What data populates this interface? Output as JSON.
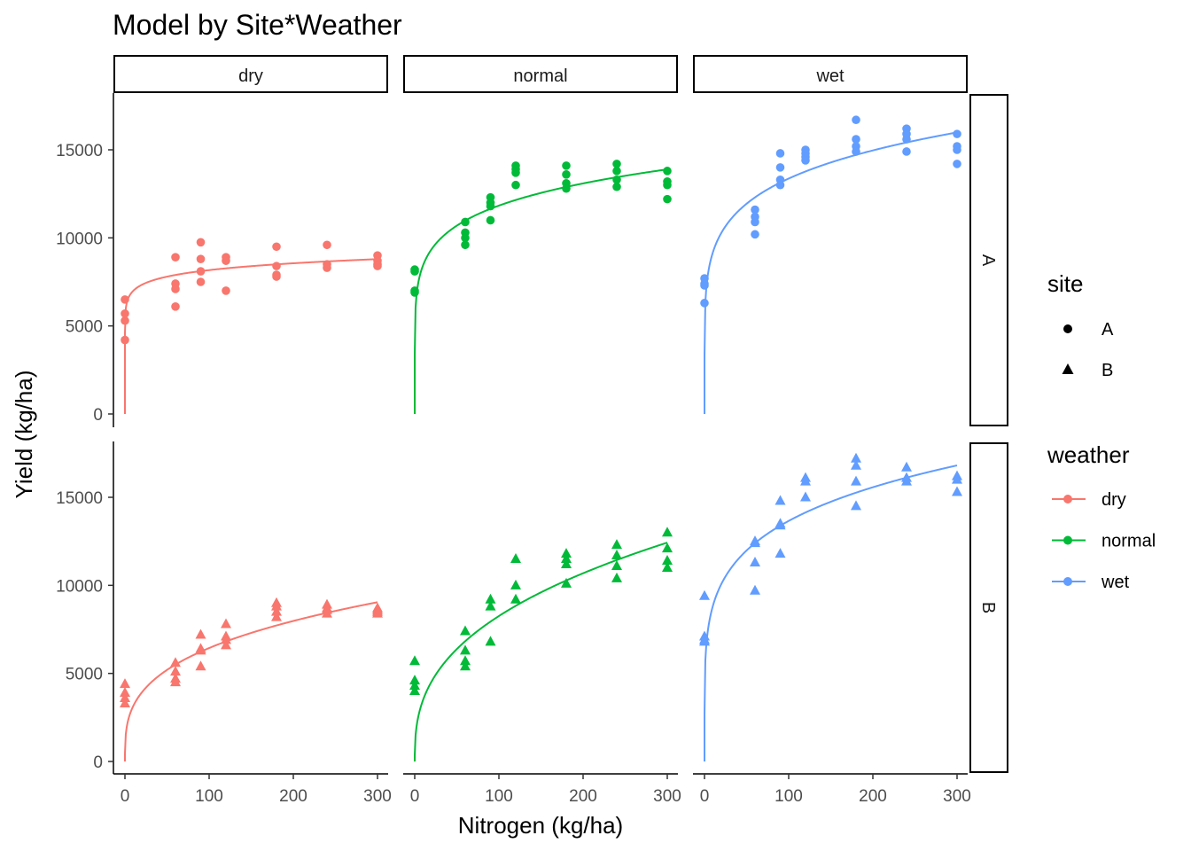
{
  "chart_data": {
    "type": "scatter",
    "title": "Model by Site*Weather",
    "xlabel": "Nitrogen (kg/ha)",
    "ylabel": "Yield (kg/ha)",
    "xlim": [
      0,
      300
    ],
    "ylim": [
      0,
      17500
    ],
    "x_ticks": [
      0,
      100,
      200,
      300
    ],
    "y_ticks": [
      0,
      5000,
      10000,
      15000
    ],
    "grid": false,
    "facet_cols": [
      "dry",
      "normal",
      "wet"
    ],
    "facet_rows": [
      "A",
      "B"
    ],
    "colors": {
      "dry": "#F8766D",
      "normal": "#00BA38",
      "wet": "#619CFF"
    },
    "legend": {
      "placement": "right",
      "site": {
        "title": "site",
        "entries": [
          "A",
          "B"
        ]
      },
      "weather": {
        "title": "weather",
        "entries": [
          "dry",
          "normal",
          "wet"
        ]
      }
    },
    "fit_model": "yield = a * N^b",
    "panels": [
      {
        "weather": "dry",
        "site": "A",
        "fit": {
          "a": 6000,
          "b": 0.067
        },
        "points": [
          [
            0,
            6500
          ],
          [
            0,
            5700
          ],
          [
            0,
            5300
          ],
          [
            0,
            4200
          ],
          [
            60,
            8900
          ],
          [
            60,
            7400
          ],
          [
            60,
            7100
          ],
          [
            60,
            6100
          ],
          [
            90,
            9750
          ],
          [
            90,
            8800
          ],
          [
            90,
            8100
          ],
          [
            90,
            7500
          ],
          [
            120,
            8900
          ],
          [
            120,
            8700
          ],
          [
            120,
            7000
          ],
          [
            180,
            9500
          ],
          [
            180,
            8400
          ],
          [
            180,
            7900
          ],
          [
            180,
            7800
          ],
          [
            240,
            9600
          ],
          [
            240,
            8500
          ],
          [
            240,
            8300
          ],
          [
            300,
            9000
          ],
          [
            300,
            8700
          ],
          [
            300,
            8500
          ],
          [
            300,
            8400
          ]
        ]
      },
      {
        "weather": "normal",
        "site": "A",
        "fit": {
          "a": 6040,
          "b": 0.146
        },
        "points": [
          [
            0,
            8200
          ],
          [
            0,
            8100
          ],
          [
            0,
            7000
          ],
          [
            0,
            6900
          ],
          [
            60,
            10900
          ],
          [
            60,
            10300
          ],
          [
            60,
            10000
          ],
          [
            60,
            9600
          ],
          [
            90,
            12300
          ],
          [
            90,
            12000
          ],
          [
            90,
            11800
          ],
          [
            90,
            11000
          ],
          [
            120,
            14100
          ],
          [
            120,
            13900
          ],
          [
            120,
            13700
          ],
          [
            120,
            13000
          ],
          [
            180,
            14100
          ],
          [
            180,
            13600
          ],
          [
            180,
            13100
          ],
          [
            180,
            12800
          ],
          [
            240,
            14200
          ],
          [
            240,
            13800
          ],
          [
            240,
            13300
          ],
          [
            240,
            12900
          ],
          [
            300,
            13800
          ],
          [
            300,
            13200
          ],
          [
            300,
            13000
          ],
          [
            300,
            12200
          ]
        ]
      },
      {
        "weather": "wet",
        "site": "A",
        "fit": {
          "a": 6310,
          "b": 0.163
        },
        "points": [
          [
            0,
            7700
          ],
          [
            0,
            7400
          ],
          [
            0,
            7300
          ],
          [
            0,
            6300
          ],
          [
            60,
            11600
          ],
          [
            60,
            11200
          ],
          [
            60,
            10900
          ],
          [
            60,
            10200
          ],
          [
            90,
            14800
          ],
          [
            90,
            14000
          ],
          [
            90,
            13300
          ],
          [
            90,
            13000
          ],
          [
            120,
            15000
          ],
          [
            120,
            14800
          ],
          [
            120,
            14600
          ],
          [
            120,
            14400
          ],
          [
            180,
            16700
          ],
          [
            180,
            15600
          ],
          [
            180,
            15200
          ],
          [
            180,
            14900
          ],
          [
            240,
            16200
          ],
          [
            240,
            15900
          ],
          [
            240,
            15600
          ],
          [
            240,
            14900
          ],
          [
            300,
            15900
          ],
          [
            300,
            15200
          ],
          [
            300,
            15000
          ],
          [
            300,
            14200
          ]
        ]
      },
      {
        "weather": "dry",
        "site": "B",
        "fit": {
          "a": 1552,
          "b": 0.309
        },
        "points": [
          [
            0,
            4400
          ],
          [
            0,
            3900
          ],
          [
            0,
            3600
          ],
          [
            0,
            3300
          ],
          [
            60,
            5600
          ],
          [
            60,
            5100
          ],
          [
            60,
            4700
          ],
          [
            60,
            4500
          ],
          [
            90,
            7200
          ],
          [
            90,
            6400
          ],
          [
            90,
            6300
          ],
          [
            90,
            5400
          ],
          [
            120,
            7800
          ],
          [
            120,
            7100
          ],
          [
            120,
            6900
          ],
          [
            120,
            6600
          ],
          [
            180,
            9000
          ],
          [
            180,
            8800
          ],
          [
            180,
            8500
          ],
          [
            180,
            8200
          ],
          [
            240,
            8900
          ],
          [
            240,
            8700
          ],
          [
            240,
            8600
          ],
          [
            240,
            8400
          ],
          [
            300,
            8700
          ],
          [
            300,
            8600
          ],
          [
            300,
            8500
          ],
          [
            300,
            8400
          ]
        ]
      },
      {
        "weather": "normal",
        "site": "B",
        "fit": {
          "a": 1489,
          "b": 0.372
        },
        "points": [
          [
            0,
            5700
          ],
          [
            0,
            4600
          ],
          [
            0,
            4300
          ],
          [
            0,
            4000
          ],
          [
            60,
            7400
          ],
          [
            60,
            6300
          ],
          [
            60,
            5700
          ],
          [
            60,
            5400
          ],
          [
            90,
            9200
          ],
          [
            90,
            8800
          ],
          [
            90,
            6800
          ],
          [
            120,
            11500
          ],
          [
            120,
            10000
          ],
          [
            120,
            9200
          ],
          [
            180,
            11800
          ],
          [
            180,
            11500
          ],
          [
            180,
            11200
          ],
          [
            180,
            10100
          ],
          [
            240,
            12300
          ],
          [
            240,
            11700
          ],
          [
            240,
            11100
          ],
          [
            240,
            10400
          ],
          [
            300,
            13000
          ],
          [
            300,
            12100
          ],
          [
            300,
            11400
          ],
          [
            300,
            11000
          ]
        ]
      },
      {
        "weather": "wet",
        "site": "B",
        "fit": {
          "a": 5720,
          "b": 0.189
        },
        "points": [
          [
            0,
            9400
          ],
          [
            0,
            7100
          ],
          [
            0,
            6900
          ],
          [
            0,
            6800
          ],
          [
            60,
            12500
          ],
          [
            60,
            12400
          ],
          [
            60,
            11300
          ],
          [
            60,
            9700
          ],
          [
            90,
            14800
          ],
          [
            90,
            13500
          ],
          [
            90,
            13400
          ],
          [
            90,
            11800
          ],
          [
            120,
            16100
          ],
          [
            120,
            15900
          ],
          [
            120,
            15000
          ],
          [
            180,
            17200
          ],
          [
            180,
            16800
          ],
          [
            180,
            15900
          ],
          [
            180,
            14500
          ],
          [
            240,
            16700
          ],
          [
            240,
            16100
          ],
          [
            240,
            15900
          ],
          [
            300,
            16200
          ],
          [
            300,
            16000
          ],
          [
            300,
            15300
          ]
        ]
      }
    ]
  }
}
